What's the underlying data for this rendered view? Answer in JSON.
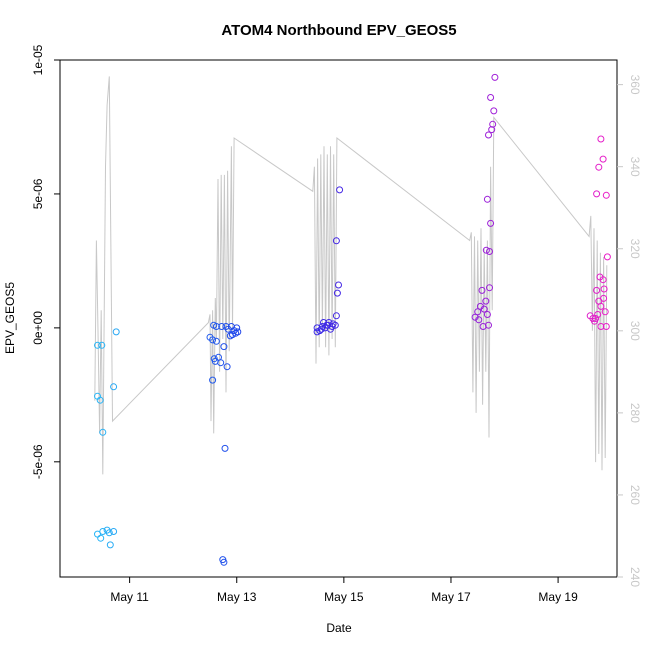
{
  "chart_data": {
    "type": "scatter",
    "title": "ATOM4 Northbound EPV_GEOS5",
    "xlabel": "Date",
    "ylabel": "EPV_GEOS5",
    "x_ticks": [
      {
        "label": "May 11",
        "value": 11.0
      },
      {
        "label": "May 13",
        "value": 13.0
      },
      {
        "label": "May 15",
        "value": 15.0
      },
      {
        "label": "May 17",
        "value": 17.0
      },
      {
        "label": "May 19",
        "value": 19.0
      }
    ],
    "xlim": [
      9.7,
      20.1
    ],
    "y_ticks": [
      {
        "label": "-5e-06",
        "value": -5e-06
      },
      {
        "label": "0e+00",
        "value": 0
      },
      {
        "label": "5e-06",
        "value": 5e-06
      },
      {
        "label": "1e-05",
        "value": 1e-05
      }
    ],
    "ylim": [
      -9.3e-06,
      1e-05
    ],
    "y2_ticks": [
      {
        "label": "240",
        "value": 240
      },
      {
        "label": "260",
        "value": 260
      },
      {
        "label": "280",
        "value": 280
      },
      {
        "label": "300",
        "value": 300
      },
      {
        "label": "320",
        "value": 320
      },
      {
        "label": "340",
        "value": 340
      },
      {
        "label": "360",
        "value": 360
      }
    ],
    "y2lim": [
      240,
      366
    ],
    "series": [
      {
        "kind": "points",
        "color_scale": [
          "#29b6f6",
          "#1e2ee8",
          "#7b1fe0",
          "#e91ec8"
        ],
        "points": [
          {
            "x": 10.4,
            "y": -6.5e-07
          },
          {
            "x": 10.48,
            "y": -6.5e-07
          },
          {
            "x": 10.75,
            "y": -1.5e-07
          },
          {
            "x": 10.4,
            "y": -2.55e-06
          },
          {
            "x": 10.45,
            "y": -2.7e-06
          },
          {
            "x": 10.7,
            "y": -2.2e-06
          },
          {
            "x": 10.5,
            "y": -3.9e-06
          },
          {
            "x": 10.4,
            "y": -7.7e-06
          },
          {
            "x": 10.46,
            "y": -7.85e-06
          },
          {
            "x": 10.5,
            "y": -7.6e-06
          },
          {
            "x": 10.58,
            "y": -7.55e-06
          },
          {
            "x": 10.62,
            "y": -7.65e-06
          },
          {
            "x": 10.7,
            "y": -7.6e-06
          },
          {
            "x": 10.64,
            "y": -8.1e-06
          },
          {
            "x": 12.5,
            "y": -3.5e-07
          },
          {
            "x": 12.55,
            "y": -4.5e-07
          },
          {
            "x": 12.62,
            "y": -5e-07
          },
          {
            "x": 12.66,
            "y": -1.1e-06
          },
          {
            "x": 12.7,
            "y": -1.3e-06
          },
          {
            "x": 12.76,
            "y": -7e-07
          },
          {
            "x": 12.82,
            "y": -1.45e-06
          },
          {
            "x": 12.55,
            "y": -1.95e-06
          },
          {
            "x": 12.58,
            "y": -1.15e-06
          },
          {
            "x": 12.6,
            "y": -1.25e-06
          },
          {
            "x": 12.88,
            "y": -3e-07
          },
          {
            "x": 12.95,
            "y": -1e-07
          },
          {
            "x": 13.0,
            "y": 0.0
          },
          {
            "x": 13.02,
            "y": -1.5e-07
          },
          {
            "x": 12.98,
            "y": -2e-07
          },
          {
            "x": 12.9,
            "y": 5e-08
          },
          {
            "x": 12.84,
            "y": -5e-08
          },
          {
            "x": 12.8,
            "y": 5e-08
          },
          {
            "x": 12.72,
            "y": 5e-08
          },
          {
            "x": 12.62,
            "y": 5e-08
          },
          {
            "x": 12.57,
            "y": 1e-07
          },
          {
            "x": 12.92,
            "y": -2.5e-07
          },
          {
            "x": 12.78,
            "y": -4.5e-06
          },
          {
            "x": 12.74,
            "y": -8.65e-06
          },
          {
            "x": 12.76,
            "y": -8.75e-06
          },
          {
            "x": 14.5,
            "y": 0.0
          },
          {
            "x": 14.55,
            "y": -1e-07
          },
          {
            "x": 14.6,
            "y": 5e-08
          },
          {
            "x": 14.65,
            "y": 0.0
          },
          {
            "x": 14.7,
            "y": 1e-07
          },
          {
            "x": 14.75,
            "y": -5e-08
          },
          {
            "x": 14.8,
            "y": 1.5e-07
          },
          {
            "x": 14.5,
            "y": -1.5e-07
          },
          {
            "x": 14.58,
            "y": -5e-08
          },
          {
            "x": 14.62,
            "y": 2e-07
          },
          {
            "x": 14.68,
            "y": 1e-07
          },
          {
            "x": 14.72,
            "y": 2e-07
          },
          {
            "x": 14.78,
            "y": 5e-08
          },
          {
            "x": 14.84,
            "y": 1e-07
          },
          {
            "x": 14.86,
            "y": 4.5e-07
          },
          {
            "x": 14.88,
            "y": 1.3e-06
          },
          {
            "x": 14.9,
            "y": 1.6e-06
          },
          {
            "x": 14.86,
            "y": 3.25e-06
          },
          {
            "x": 14.92,
            "y": 5.15e-06
          },
          {
            "x": 17.45,
            "y": 4e-07
          },
          {
            "x": 17.5,
            "y": 6e-07
          },
          {
            "x": 17.52,
            "y": 3e-07
          },
          {
            "x": 17.55,
            "y": 8e-07
          },
          {
            "x": 17.58,
            "y": 1.4e-06
          },
          {
            "x": 17.62,
            "y": 7e-07
          },
          {
            "x": 17.65,
            "y": 1e-06
          },
          {
            "x": 17.68,
            "y": 5e-07
          },
          {
            "x": 17.6,
            "y": 5e-08
          },
          {
            "x": 17.7,
            "y": 1e-07
          },
          {
            "x": 17.72,
            "y": 1.5e-06
          },
          {
            "x": 17.66,
            "y": 2.9e-06
          },
          {
            "x": 17.72,
            "y": 2.85e-06
          },
          {
            "x": 17.68,
            "y": 4.8e-06
          },
          {
            "x": 17.74,
            "y": 3.9e-06
          },
          {
            "x": 17.7,
            "y": 7.2e-06
          },
          {
            "x": 17.76,
            "y": 7.4e-06
          },
          {
            "x": 17.78,
            "y": 7.6e-06
          },
          {
            "x": 17.8,
            "y": 8.1e-06
          },
          {
            "x": 17.74,
            "y": 8.6e-06
          },
          {
            "x": 17.82,
            "y": 9.35e-06
          },
          {
            "x": 19.6,
            "y": 4.5e-07
          },
          {
            "x": 19.65,
            "y": 3.5e-07
          },
          {
            "x": 19.68,
            "y": 2.5e-07
          },
          {
            "x": 19.72,
            "y": 1.4e-06
          },
          {
            "x": 19.76,
            "y": 1e-06
          },
          {
            "x": 19.8,
            "y": 8e-07
          },
          {
            "x": 19.85,
            "y": 1.1e-06
          },
          {
            "x": 19.9,
            "y": 5e-08
          },
          {
            "x": 19.7,
            "y": 3.5e-07
          },
          {
            "x": 19.78,
            "y": 1.9e-06
          },
          {
            "x": 19.84,
            "y": 1.8e-06
          },
          {
            "x": 19.86,
            "y": 1.45e-06
          },
          {
            "x": 19.74,
            "y": 5e-07
          },
          {
            "x": 19.8,
            "y": 5e-08
          },
          {
            "x": 19.88,
            "y": 6e-07
          },
          {
            "x": 19.92,
            "y": 2.65e-06
          },
          {
            "x": 19.72,
            "y": 5e-06
          },
          {
            "x": 19.9,
            "y": 4.95e-06
          },
          {
            "x": 19.76,
            "y": 6e-06
          },
          {
            "x": 19.84,
            "y": 6.3e-06
          },
          {
            "x": 19.8,
            "y": 7.05e-06
          }
        ]
      },
      {
        "kind": "line",
        "axis": "right",
        "color": "#c8c8c8",
        "points": [
          {
            "x": 10.35,
            "y": 283
          },
          {
            "x": 10.38,
            "y": 322
          },
          {
            "x": 10.41,
            "y": 300
          },
          {
            "x": 10.44,
            "y": 275
          },
          {
            "x": 10.47,
            "y": 305
          },
          {
            "x": 10.5,
            "y": 265
          },
          {
            "x": 10.55,
            "y": 340
          },
          {
            "x": 10.58,
            "y": 355
          },
          {
            "x": 10.62,
            "y": 362
          },
          {
            "x": 10.68,
            "y": 278
          },
          {
            "x": 12.47,
            "y": 302
          },
          {
            "x": 12.5,
            "y": 304
          },
          {
            "x": 12.52,
            "y": 278
          },
          {
            "x": 12.55,
            "y": 305
          },
          {
            "x": 12.57,
            "y": 275
          },
          {
            "x": 12.6,
            "y": 308
          },
          {
            "x": 12.62,
            "y": 298
          },
          {
            "x": 12.65,
            "y": 337
          },
          {
            "x": 12.68,
            "y": 290
          },
          {
            "x": 12.71,
            "y": 338
          },
          {
            "x": 12.74,
            "y": 298
          },
          {
            "x": 12.77,
            "y": 338
          },
          {
            "x": 12.8,
            "y": 285
          },
          {
            "x": 12.83,
            "y": 339
          },
          {
            "x": 12.86,
            "y": 295
          },
          {
            "x": 12.9,
            "y": 345
          },
          {
            "x": 12.92,
            "y": 300
          },
          {
            "x": 12.95,
            "y": 347
          },
          {
            "x": 14.42,
            "y": 334
          },
          {
            "x": 14.45,
            "y": 340
          },
          {
            "x": 14.48,
            "y": 292
          },
          {
            "x": 14.51,
            "y": 342
          },
          {
            "x": 14.54,
            "y": 296
          },
          {
            "x": 14.57,
            "y": 343
          },
          {
            "x": 14.6,
            "y": 300
          },
          {
            "x": 14.63,
            "y": 345
          },
          {
            "x": 14.66,
            "y": 296
          },
          {
            "x": 14.69,
            "y": 343
          },
          {
            "x": 14.72,
            "y": 294
          },
          {
            "x": 14.75,
            "y": 345
          },
          {
            "x": 14.78,
            "y": 298
          },
          {
            "x": 14.81,
            "y": 343
          },
          {
            "x": 14.84,
            "y": 296
          },
          {
            "x": 14.87,
            "y": 347
          },
          {
            "x": 17.35,
            "y": 322
          },
          {
            "x": 17.38,
            "y": 324
          },
          {
            "x": 17.41,
            "y": 285
          },
          {
            "x": 17.44,
            "y": 323
          },
          {
            "x": 17.47,
            "y": 280
          },
          {
            "x": 17.5,
            "y": 322
          },
          {
            "x": 17.53,
            "y": 290
          },
          {
            "x": 17.56,
            "y": 325
          },
          {
            "x": 17.59,
            "y": 282
          },
          {
            "x": 17.62,
            "y": 320
          },
          {
            "x": 17.65,
            "y": 290
          },
          {
            "x": 17.68,
            "y": 322
          },
          {
            "x": 17.71,
            "y": 274
          },
          {
            "x": 17.74,
            "y": 340
          },
          {
            "x": 17.77,
            "y": 305
          },
          {
            "x": 17.8,
            "y": 352
          },
          {
            "x": 19.58,
            "y": 323
          },
          {
            "x": 19.61,
            "y": 328
          },
          {
            "x": 19.64,
            "y": 300
          },
          {
            "x": 19.67,
            "y": 325
          },
          {
            "x": 19.7,
            "y": 268
          },
          {
            "x": 19.73,
            "y": 322
          },
          {
            "x": 19.76,
            "y": 270
          },
          {
            "x": 19.79,
            "y": 319
          },
          {
            "x": 19.82,
            "y": 266
          },
          {
            "x": 19.85,
            "y": 318
          },
          {
            "x": 19.88,
            "y": 269
          },
          {
            "x": 19.91,
            "y": 316
          }
        ]
      }
    ],
    "grid": false,
    "legend": "none"
  }
}
